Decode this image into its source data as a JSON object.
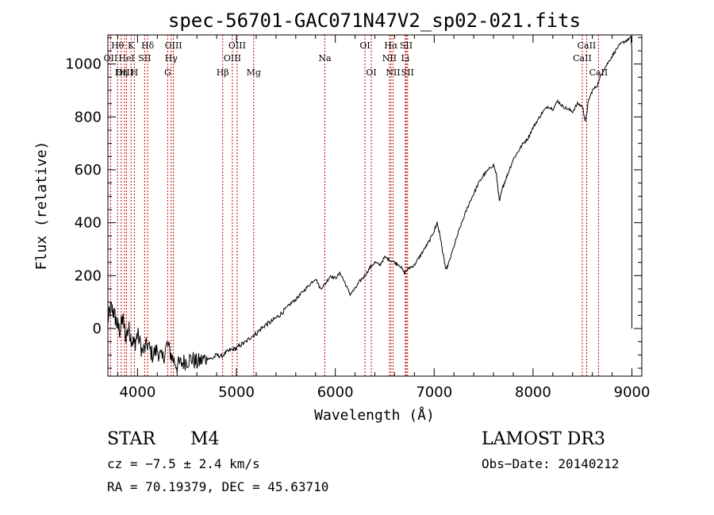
{
  "chart_data": {
    "type": "line",
    "title": "spec-56701-GAC071N47V2_sp02-021.fits",
    "xlabel": "Wavelength (Å)",
    "ylabel": "Flux (relative)",
    "xlim": [
      3700,
      9100
    ],
    "ylim": [
      -180,
      1110
    ],
    "x_ticks": [
      4000,
      5000,
      6000,
      7000,
      8000,
      9000
    ],
    "x_tick_labels": [
      "4000",
      "5000",
      "6000",
      "7000",
      "8000",
      "9000"
    ],
    "y_ticks": [
      0,
      200,
      400,
      600,
      800,
      1000
    ],
    "y_tick_labels": [
      "0",
      "200",
      "400",
      "600",
      "800",
      "1000"
    ],
    "series": [
      {
        "name": "spectrum",
        "x": [
          3700,
          3730,
          3760,
          3790,
          3820,
          3850,
          3880,
          3910,
          3940,
          3970,
          4000,
          4050,
          4100,
          4150,
          4200,
          4250,
          4300,
          4350,
          4400,
          4450,
          4500,
          4550,
          4600,
          4650,
          4700,
          4750,
          4800,
          4850,
          4900,
          4950,
          5000,
          5050,
          5100,
          5150,
          5200,
          5250,
          5300,
          5350,
          5400,
          5450,
          5500,
          5550,
          5600,
          5650,
          5700,
          5750,
          5800,
          5850,
          5900,
          5950,
          6000,
          6050,
          6100,
          6150,
          6200,
          6250,
          6300,
          6350,
          6400,
          6450,
          6500,
          6550,
          6600,
          6650,
          6700,
          6750,
          6800,
          6850,
          6900,
          6950,
          7000,
          7030,
          7060,
          7090,
          7120,
          7150,
          7200,
          7250,
          7300,
          7350,
          7400,
          7450,
          7500,
          7550,
          7600,
          7630,
          7660,
          7690,
          7720,
          7750,
          7800,
          7850,
          7900,
          7950,
          8000,
          8050,
          8100,
          8150,
          8200,
          8250,
          8300,
          8350,
          8400,
          8450,
          8500,
          8530,
          8560,
          8600,
          8650,
          8700,
          8750,
          8800,
          8850,
          8900,
          8950,
          8990,
          9000
        ],
        "y": [
          30,
          80,
          60,
          20,
          -10,
          40,
          -30,
          0,
          -40,
          -60,
          -20,
          -90,
          -60,
          -100,
          -80,
          -120,
          -60,
          -110,
          -140,
          -130,
          -120,
          -115,
          -130,
          -120,
          -110,
          -115,
          -100,
          -105,
          -90,
          -80,
          -75,
          -60,
          -50,
          -30,
          -20,
          0,
          15,
          25,
          40,
          55,
          75,
          95,
          110,
          130,
          150,
          170,
          190,
          150,
          170,
          200,
          190,
          210,
          170,
          130,
          150,
          180,
          200,
          230,
          250,
          240,
          270,
          260,
          250,
          240,
          210,
          230,
          240,
          270,
          300,
          330,
          370,
          400,
          350,
          280,
          220,
          250,
          310,
          370,
          420,
          470,
          510,
          550,
          580,
          600,
          620,
          580,
          480,
          530,
          560,
          590,
          640,
          670,
          700,
          720,
          760,
          790,
          820,
          840,
          830,
          860,
          840,
          830,
          820,
          850,
          840,
          780,
          860,
          900,
          920,
          970,
          1000,
          1030,
          1060,
          1080,
          1090,
          1100,
          1050
        ]
      }
    ],
    "lines": [
      {
        "label": "Hθ",
        "x": 3798,
        "row": 1
      },
      {
        "label": "OII",
        "x": 3727,
        "row": 2
      },
      {
        "label": "OIII",
        "x": 3869,
        "row": 3
      },
      {
        "label": "K",
        "x": 3934,
        "row": 1
      },
      {
        "label": "HeI",
        "x": 3889,
        "row": 2
      },
      {
        "label": "Hη",
        "x": 3835,
        "row": 3
      },
      {
        "label": "H",
        "x": 3968,
        "row": 3
      },
      {
        "label": "Hδ",
        "x": 4102,
        "row": 1
      },
      {
        "label": "SII",
        "x": 4072,
        "row": 2
      },
      {
        "label": "OIII",
        "x": 4363,
        "row": 1
      },
      {
        "label": "Hγ",
        "x": 4340,
        "row": 2
      },
      {
        "label": "G",
        "x": 4305,
        "row": 3
      },
      {
        "label": "OIII",
        "x": 5007,
        "row": 1
      },
      {
        "label": "OIII",
        "x": 4959,
        "row": 2
      },
      {
        "label": "Hβ",
        "x": 4861,
        "row": 3
      },
      {
        "label": "Mg",
        "x": 5175,
        "row": 3
      },
      {
        "label": "Na",
        "x": 5894,
        "row": 2
      },
      {
        "label": "OI",
        "x": 6300,
        "row": 1
      },
      {
        "label": "OI",
        "x": 6364,
        "row": 3
      },
      {
        "label": "Hα",
        "x": 6563,
        "row": 1
      },
      {
        "label": "SII",
        "x": 6717,
        "row": 1
      },
      {
        "label": "NII",
        "x": 6548,
        "row": 2
      },
      {
        "label": "Li",
        "x": 6708,
        "row": 2
      },
      {
        "label": "NII",
        "x": 6584,
        "row": 3
      },
      {
        "label": "SII",
        "x": 6731,
        "row": 3
      },
      {
        "label": "CaII",
        "x": 8542,
        "row": 1
      },
      {
        "label": "CaII",
        "x": 8498,
        "row": 2
      },
      {
        "label": "CaII",
        "x": 8662,
        "row": 3
      }
    ]
  },
  "info": {
    "object_class": "STAR",
    "subclass": "M4",
    "survey": "LAMOST DR3",
    "cz": "cz = −7.5 ± 2.4 km/s",
    "obs_date": "Obs−Date: 20140212",
    "coords": "RA =  70.19379, DEC =  45.63710"
  },
  "colors": {
    "spectrum": "#000000",
    "line_markers": "#c00000",
    "axes": "#000000"
  }
}
